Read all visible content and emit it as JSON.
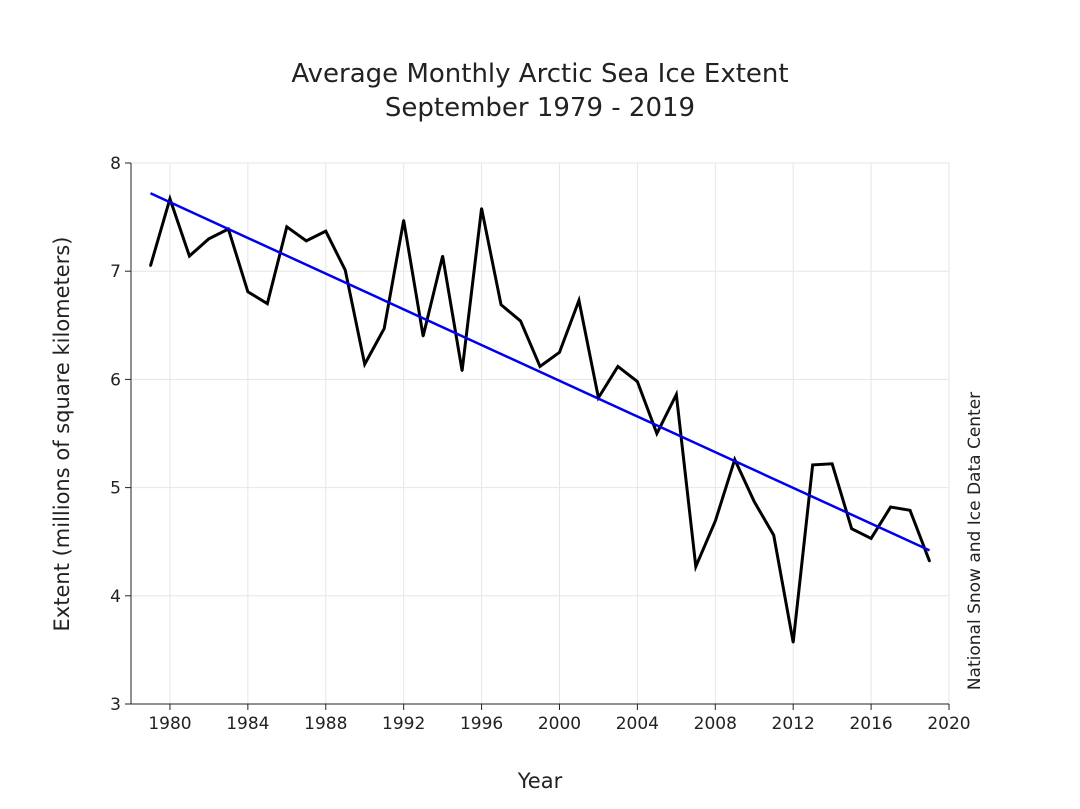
{
  "chart_data": {
    "type": "line",
    "title": "Average Monthly Arctic Sea Ice Extent",
    "subtitle": "September 1979 - 2019",
    "xlabel": "Year",
    "ylabel": "Extent (millions of square kilometers)",
    "credit": "National Snow and Ice Data Center",
    "xlim": [
      1978,
      2020
    ],
    "ylim": [
      3,
      8
    ],
    "grid": true,
    "x_ticks": [
      1980,
      1984,
      1988,
      1992,
      1996,
      2000,
      2004,
      2008,
      2012,
      2016,
      2020
    ],
    "y_ticks": [
      3,
      4,
      5,
      6,
      7,
      8
    ],
    "x": [
      1979,
      1980,
      1981,
      1982,
      1983,
      1984,
      1985,
      1986,
      1987,
      1988,
      1989,
      1990,
      1991,
      1992,
      1993,
      1994,
      1995,
      1996,
      1997,
      1998,
      1999,
      2000,
      2001,
      2002,
      2003,
      2004,
      2005,
      2006,
      2007,
      2008,
      2009,
      2010,
      2011,
      2012,
      2013,
      2014,
      2015,
      2016,
      2017,
      2018,
      2019
    ],
    "series": [
      {
        "color": "#000000",
        "values": [
          7.05,
          7.67,
          7.14,
          7.3,
          7.39,
          6.81,
          6.7,
          7.41,
          7.28,
          7.37,
          7.01,
          6.14,
          6.47,
          7.47,
          6.4,
          7.14,
          6.08,
          7.58,
          6.69,
          6.54,
          6.12,
          6.25,
          6.73,
          5.83,
          6.12,
          5.98,
          5.5,
          5.86,
          4.27,
          4.69,
          5.26,
          4.87,
          4.56,
          3.57,
          5.21,
          5.22,
          4.62,
          4.53,
          4.82,
          4.79,
          4.32
        ]
      },
      {
        "color": "#0000ee",
        "trend": true,
        "x": [
          1979,
          2019
        ],
        "values": [
          7.72,
          4.42
        ]
      }
    ]
  }
}
